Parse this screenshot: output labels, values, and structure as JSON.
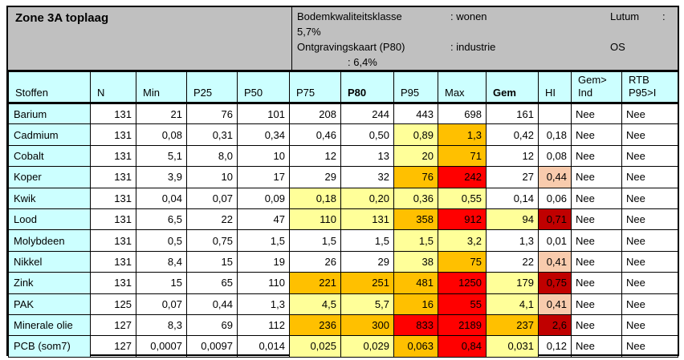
{
  "title": "Zone 3A toplaag",
  "info": {
    "quality_class_label": "Bodemkwaliteitsklasse",
    "quality_class_value": ": wonen",
    "lutum_label": "Lutum",
    "lutum_colon": ":",
    "lutum_value": "5,7%",
    "excavation_label": "Ontgravingskaart (P80)",
    "excavation_value": ": industrie",
    "os_label": "OS",
    "os_value": ": 6,4%"
  },
  "colors": {
    "header_gray": "#c0c0c0",
    "header_cyan": "#ccffff",
    "fill_yellow": "#ffff99",
    "fill_orange": "#ffc000",
    "fill_red": "#ff0000",
    "fill_darkred": "#c00000",
    "fill_peach": "#f8cbad"
  },
  "table": {
    "columns": [
      {
        "id": "stoffen",
        "label": "Stoffen"
      },
      {
        "id": "n",
        "label": "N"
      },
      {
        "id": "min",
        "label": "Min"
      },
      {
        "id": "p25",
        "label": "P25"
      },
      {
        "id": "p50",
        "label": "P50"
      },
      {
        "id": "p75",
        "label": "P75"
      },
      {
        "id": "p80",
        "label": "P80",
        "bold": true
      },
      {
        "id": "p95",
        "label": "P95"
      },
      {
        "id": "max",
        "label": "Max"
      },
      {
        "id": "gem",
        "label": "Gem",
        "bold": true
      },
      {
        "id": "hi",
        "label": "HI"
      },
      {
        "id": "gem-ind",
        "label": "Gem>\nInd"
      },
      {
        "id": "rtb-p95i",
        "label": "RTB\nP95>I"
      }
    ],
    "rows": [
      {
        "id": "barium",
        "cells": [
          "Barium",
          "131",
          "21",
          "76",
          "101",
          "208",
          "244",
          "443",
          "698",
          "161",
          "",
          "Nee",
          "Nee"
        ],
        "fills": [
          "",
          "",
          "",
          "",
          "",
          "",
          "",
          "",
          "",
          "",
          "",
          "",
          ""
        ]
      },
      {
        "id": "cadmium",
        "cells": [
          "Cadmium",
          "131",
          "0,08",
          "0,31",
          "0,34",
          "0,46",
          "0,50",
          "0,89",
          "1,3",
          "0,42",
          "0,18",
          "Nee",
          "Nee"
        ],
        "fills": [
          "",
          "",
          "",
          "",
          "",
          "",
          "",
          "Y",
          "O",
          "",
          "",
          "",
          ""
        ]
      },
      {
        "id": "cobalt",
        "cells": [
          "Cobalt",
          "131",
          "5,1",
          "8,0",
          "10",
          "12",
          "13",
          "20",
          "71",
          "12",
          "0,08",
          "Nee",
          "Nee"
        ],
        "fills": [
          "",
          "",
          "",
          "",
          "",
          "",
          "",
          "Y",
          "O",
          "",
          "",
          "",
          ""
        ]
      },
      {
        "id": "koper",
        "cells": [
          "Koper",
          "131",
          "3,9",
          "10",
          "17",
          "29",
          "32",
          "76",
          "242",
          "27",
          "0,44",
          "Nee",
          "Nee"
        ],
        "fills": [
          "",
          "",
          "",
          "",
          "",
          "",
          "",
          "O",
          "R",
          "",
          "P",
          "",
          ""
        ]
      },
      {
        "id": "kwik",
        "cells": [
          "Kwik",
          "131",
          "0,04",
          "0,07",
          "0,09",
          "0,18",
          "0,20",
          "0,36",
          "0,55",
          "0,14",
          "0,06",
          "Nee",
          "Nee"
        ],
        "fills": [
          "",
          "",
          "",
          "",
          "",
          "Y",
          "Y",
          "Y",
          "Y",
          "",
          "",
          "",
          ""
        ]
      },
      {
        "id": "lood",
        "cells": [
          "Lood",
          "131",
          "6,5",
          "22",
          "47",
          "110",
          "131",
          "358",
          "912",
          "94",
          "0,71",
          "Nee",
          "Nee"
        ],
        "fills": [
          "",
          "",
          "",
          "",
          "",
          "Y",
          "Y",
          "O",
          "R",
          "Y",
          "D",
          "",
          ""
        ]
      },
      {
        "id": "molybdeen",
        "cells": [
          "Molybdeen",
          "131",
          "0,5",
          "0,75",
          "1,5",
          "1,5",
          "1,5",
          "1,5",
          "3,2",
          "1,3",
          "0,01",
          "Nee",
          "Nee"
        ],
        "fills": [
          "",
          "",
          "",
          "",
          "",
          "",
          "",
          "Y",
          "Y",
          "",
          "",
          "",
          ""
        ]
      },
      {
        "id": "nikkel",
        "cells": [
          "Nikkel",
          "131",
          "8,4",
          "15",
          "19",
          "26",
          "29",
          "38",
          "75",
          "22",
          "0,41",
          "Nee",
          "Nee"
        ],
        "fills": [
          "",
          "",
          "",
          "",
          "",
          "",
          "",
          "Y",
          "O",
          "",
          "P",
          "",
          ""
        ]
      },
      {
        "id": "zink",
        "cells": [
          "Zink",
          "131",
          "15",
          "65",
          "110",
          "221",
          "251",
          "481",
          "1250",
          "179",
          "0,75",
          "Nee",
          "Nee"
        ],
        "fills": [
          "",
          "",
          "",
          "",
          "",
          "O",
          "O",
          "O",
          "R",
          "Y",
          "D",
          "",
          ""
        ]
      },
      {
        "id": "pak",
        "cells": [
          "PAK",
          "125",
          "0,07",
          "0,44",
          "1,3",
          "4,5",
          "5,7",
          "16",
          "55",
          "4,1",
          "0,41",
          "Nee",
          "Nee"
        ],
        "fills": [
          "",
          "",
          "",
          "",
          "",
          "Y",
          "Y",
          "O",
          "R",
          "Y",
          "P",
          "",
          ""
        ]
      },
      {
        "id": "minerale-olie",
        "cells": [
          "Minerale olie",
          "127",
          "8,3",
          "69",
          "112",
          "236",
          "300",
          "833",
          "2189",
          "237",
          "2,6",
          "Nee",
          "Nee"
        ],
        "fills": [
          "",
          "",
          "",
          "",
          "",
          "O",
          "O",
          "R",
          "R",
          "O",
          "D",
          "",
          ""
        ]
      },
      {
        "id": "pcb-som7",
        "cells": [
          "PCB (som7)",
          "127",
          "0,0007",
          "0,0097",
          "0,014",
          "0,025",
          "0,029",
          "0,063",
          "0,84",
          "0,031",
          "0,12",
          "Nee",
          "Nee"
        ],
        "fills": [
          "",
          "",
          "",
          "",
          "",
          "Y",
          "Y",
          "O",
          "R",
          "Y",
          "",
          "",
          ""
        ]
      }
    ]
  }
}
